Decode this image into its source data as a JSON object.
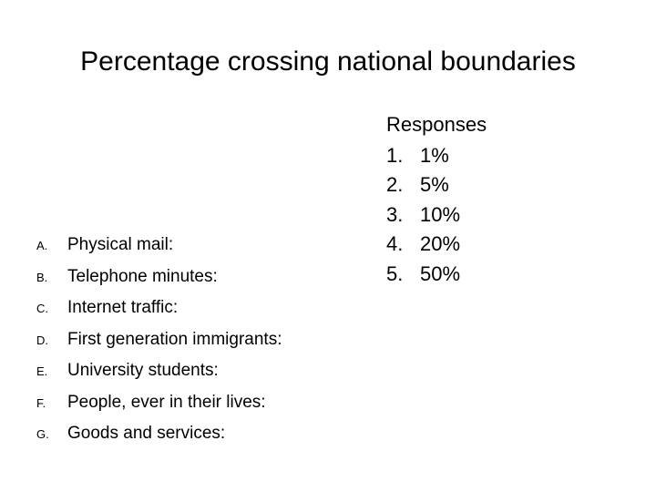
{
  "title": "Percentage crossing national boundaries",
  "questions": [
    {
      "letter": "A.",
      "text": "Physical mail:"
    },
    {
      "letter": "B.",
      "text": "Telephone minutes:"
    },
    {
      "letter": "C.",
      "text": "Internet traffic:"
    },
    {
      "letter": "D.",
      "text": "First generation immigrants:"
    },
    {
      "letter": "E.",
      "text": "University students:"
    },
    {
      "letter": "F.",
      "text": "People, ever in their lives:"
    },
    {
      "letter": "G.",
      "text": "Goods and services:"
    }
  ],
  "responses": {
    "title": "Responses",
    "items": [
      {
        "num": "1.",
        "text": "1%"
      },
      {
        "num": "2.",
        "text": "5%"
      },
      {
        "num": "3.",
        "text": "10%"
      },
      {
        "num": "4.",
        "text": "20%"
      },
      {
        "num": "5.",
        "text": "50%"
      }
    ]
  }
}
